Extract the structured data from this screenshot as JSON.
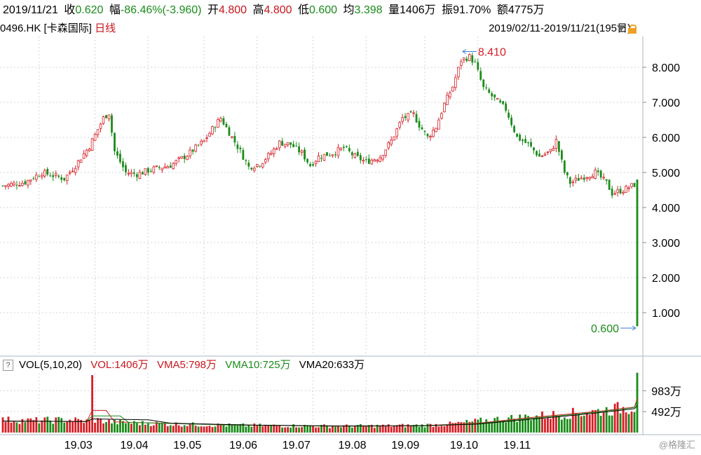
{
  "header": {
    "date": "2019/11/21",
    "close_label": "收",
    "close_value": "0.620",
    "change_label": "幅",
    "change_value": "-86.46%(-3.960)",
    "open_label": "开",
    "open_value": "4.800",
    "high_label": "高",
    "high_value": "4.800",
    "low_label": "低",
    "low_value": "0.600",
    "avg_label": "均",
    "avg_value": "3.398",
    "volume_label": "量",
    "volume_value": "1406万",
    "amplitude_label": "振",
    "amplitude_value": "91.70%",
    "amount_label": "额",
    "amount_value": "4775万"
  },
  "subheader": {
    "code_name": "0496.HK [卡森国际]",
    "period": "日线",
    "range": "2019/02/11-2019/11/21(195日)"
  },
  "volume_header": {
    "help": "?",
    "title": "VOL(5,10,20)",
    "vol": "VOL:1406万",
    "vma5": "VMA5:798万",
    "vma10": "VMA10:725万",
    "vma20": "VMA20:633万"
  },
  "watermark": "@格隆汇",
  "colors": {
    "up": "#d61f26",
    "down": "#1a8c1a",
    "vma5": "#d61f26",
    "vma10": "#1a8c1a",
    "vma20": "#000000",
    "grid": "#cfd6df"
  },
  "chart_data": [
    {
      "type": "candlestick",
      "title": "",
      "yticks": [
        "1.000",
        "2.000",
        "3.000",
        "4.000",
        "5.000",
        "6.000",
        "7.000",
        "8.000"
      ],
      "ylim": [
        -0.18,
        8.88
      ],
      "xticks": [
        "19.03",
        "19.04",
        "19.05",
        "19.06",
        "19.07",
        "19.08",
        "19.09",
        "19.10",
        "19.11"
      ],
      "annotations": [
        {
          "text": "8.410",
          "value": 8.41
        },
        {
          "text": "0.600",
          "value": 0.6
        }
      ],
      "price_path": [
        [
          0,
          4.62
        ],
        [
          8,
          4.72
        ],
        [
          14,
          5.0
        ],
        [
          22,
          4.82
        ],
        [
          26,
          5.2
        ],
        [
          31,
          5.75
        ],
        [
          36,
          6.55
        ],
        [
          38,
          6.7
        ],
        [
          40,
          5.6
        ],
        [
          44,
          5.0
        ],
        [
          48,
          4.95
        ],
        [
          54,
          5.1
        ],
        [
          60,
          5.2
        ],
        [
          66,
          5.5
        ],
        [
          72,
          5.9
        ],
        [
          76,
          6.35
        ],
        [
          78,
          6.55
        ],
        [
          82,
          6.0
        ],
        [
          85,
          5.6
        ],
        [
          88,
          5.15
        ],
        [
          92,
          5.25
        ],
        [
          96,
          5.55
        ],
        [
          99,
          5.85
        ],
        [
          103,
          5.8
        ],
        [
          107,
          5.55
        ],
        [
          110,
          5.2
        ],
        [
          113,
          5.45
        ],
        [
          118,
          5.55
        ],
        [
          122,
          5.7
        ],
        [
          126,
          5.45
        ],
        [
          130,
          5.3
        ],
        [
          135,
          5.45
        ],
        [
          139,
          5.9
        ],
        [
          143,
          6.55
        ],
        [
          147,
          6.65
        ],
        [
          149,
          6.35
        ],
        [
          152,
          6.0
        ],
        [
          155,
          6.3
        ],
        [
          158,
          6.95
        ],
        [
          161,
          7.45
        ],
        [
          164,
          8.2
        ],
        [
          167,
          8.3
        ],
        [
          169,
          8.1
        ],
        [
          172,
          7.4
        ],
        [
          176,
          7.1
        ],
        [
          180,
          6.8
        ],
        [
          184,
          6.0
        ],
        [
          188,
          5.8
        ],
        [
          192,
          5.45
        ],
        [
          196,
          5.6
        ],
        [
          198,
          5.9
        ],
        [
          201,
          5.0
        ],
        [
          203,
          4.7
        ],
        [
          207,
          4.85
        ],
        [
          212,
          5.0
        ],
        [
          216,
          4.7
        ],
        [
          218,
          4.4
        ],
        [
          222,
          4.5
        ],
        [
          226,
          4.65
        ],
        [
          227,
          0.62
        ]
      ],
      "volume_path": [
        [
          0,
          300
        ],
        [
          10,
          280
        ],
        [
          24,
          300
        ],
        [
          31,
          260
        ],
        [
          32,
          1350
        ],
        [
          33,
          300
        ],
        [
          40,
          240
        ],
        [
          60,
          200
        ],
        [
          80,
          170
        ],
        [
          100,
          160
        ],
        [
          120,
          150
        ],
        [
          140,
          160
        ],
        [
          150,
          170
        ],
        [
          160,
          200
        ],
        [
          165,
          230
        ],
        [
          175,
          300
        ],
        [
          190,
          380
        ],
        [
          200,
          430
        ],
        [
          210,
          480
        ],
        [
          220,
          560
        ],
        [
          226,
          610
        ],
        [
          227,
          1406
        ]
      ],
      "vma5_path": [
        [
          0,
          270
        ],
        [
          30,
          260
        ],
        [
          32,
          520
        ],
        [
          37,
          520
        ],
        [
          40,
          250
        ],
        [
          80,
          180
        ],
        [
          120,
          150
        ],
        [
          150,
          160
        ],
        [
          170,
          220
        ],
        [
          190,
          360
        ],
        [
          205,
          450
        ],
        [
          215,
          510
        ],
        [
          226,
          600
        ],
        [
          227,
          798
        ]
      ],
      "vma10_path": [
        [
          0,
          270
        ],
        [
          30,
          260
        ],
        [
          32,
          390
        ],
        [
          42,
          390
        ],
        [
          45,
          240
        ],
        [
          80,
          180
        ],
        [
          120,
          150
        ],
        [
          150,
          160
        ],
        [
          170,
          210
        ],
        [
          190,
          340
        ],
        [
          205,
          430
        ],
        [
          215,
          500
        ],
        [
          226,
          590
        ],
        [
          227,
          725
        ]
      ],
      "vma20_path": [
        [
          0,
          270
        ],
        [
          30,
          260
        ],
        [
          32,
          320
        ],
        [
          52,
          300
        ],
        [
          60,
          220
        ],
        [
          90,
          175
        ],
        [
          120,
          155
        ],
        [
          150,
          160
        ],
        [
          170,
          200
        ],
        [
          190,
          320
        ],
        [
          205,
          410
        ],
        [
          215,
          480
        ],
        [
          226,
          560
        ],
        [
          227,
          633
        ]
      ],
      "volume_yticks": [
        "983万",
        "492万"
      ],
      "volume_ylim": [
        0,
        1400
      ]
    }
  ]
}
